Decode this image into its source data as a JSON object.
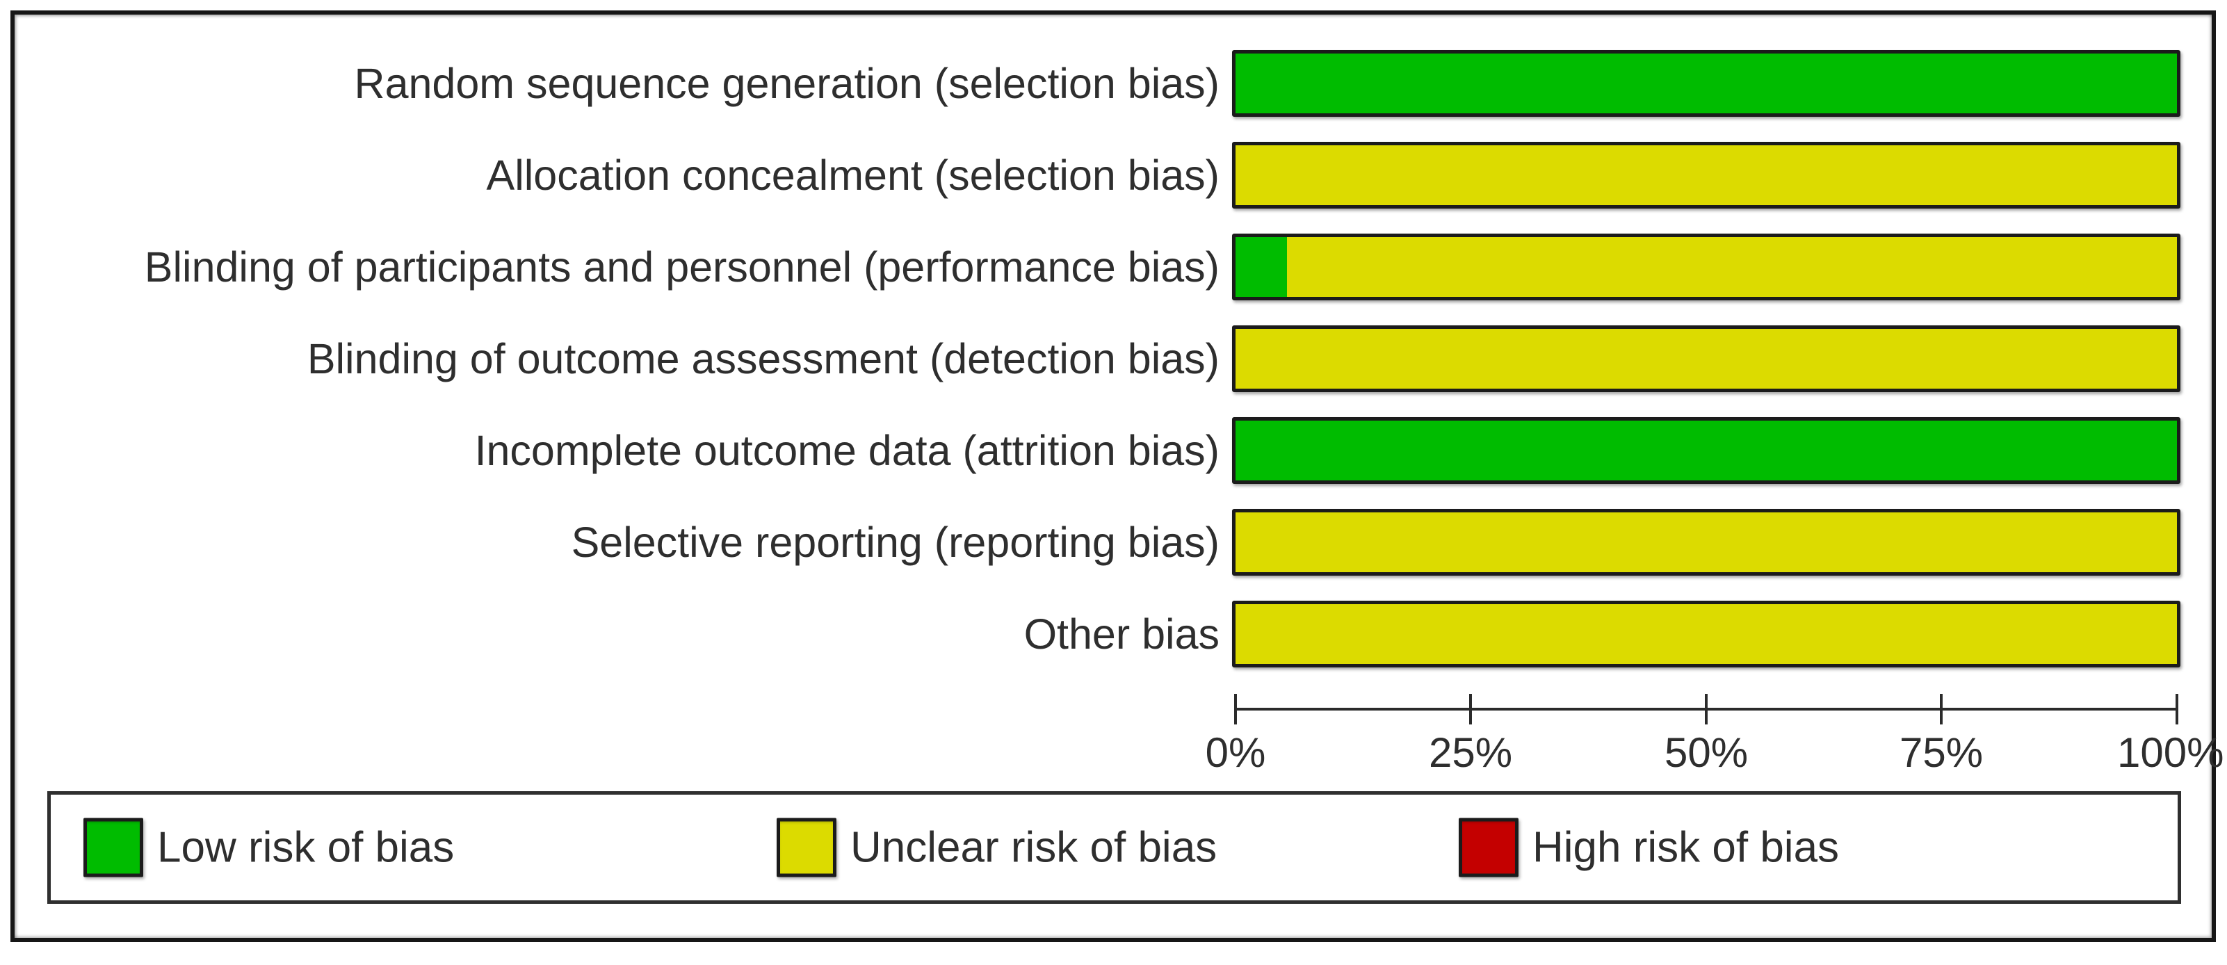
{
  "chart_data": {
    "type": "bar",
    "orientation": "horizontal",
    "categories": [
      "Random sequence generation (selection bias)",
      "Allocation concealment (selection bias)",
      "Blinding of participants and personnel (performance bias)",
      "Blinding of outcome assessment (detection bias)",
      "Incomplete outcome data (attrition bias)",
      "Selective reporting (reporting bias)",
      "Other bias"
    ],
    "series": [
      {
        "name": "Low risk of bias",
        "color": "#00BC00",
        "values": [
          100,
          0,
          5.5,
          0,
          100,
          0,
          0
        ]
      },
      {
        "name": "Unclear risk of bias",
        "color": "#DCDB00",
        "values": [
          0,
          100,
          94.5,
          100,
          0,
          100,
          100
        ]
      },
      {
        "name": "High risk of bias",
        "color": "#C40000",
        "values": [
          0,
          0,
          0,
          0,
          0,
          0,
          0
        ]
      }
    ],
    "x_ticks": [
      "0%",
      "25%",
      "50%",
      "75%",
      "100%"
    ],
    "xlim": [
      0,
      100
    ],
    "grid": false,
    "legend_position": "bottom"
  },
  "colors": {
    "low_risk": "#00BC00",
    "unclear_risk": "#DCDB00",
    "high_risk": "#C40000",
    "bar_border": "#1b1b1b",
    "text": "#2e2e2e"
  }
}
